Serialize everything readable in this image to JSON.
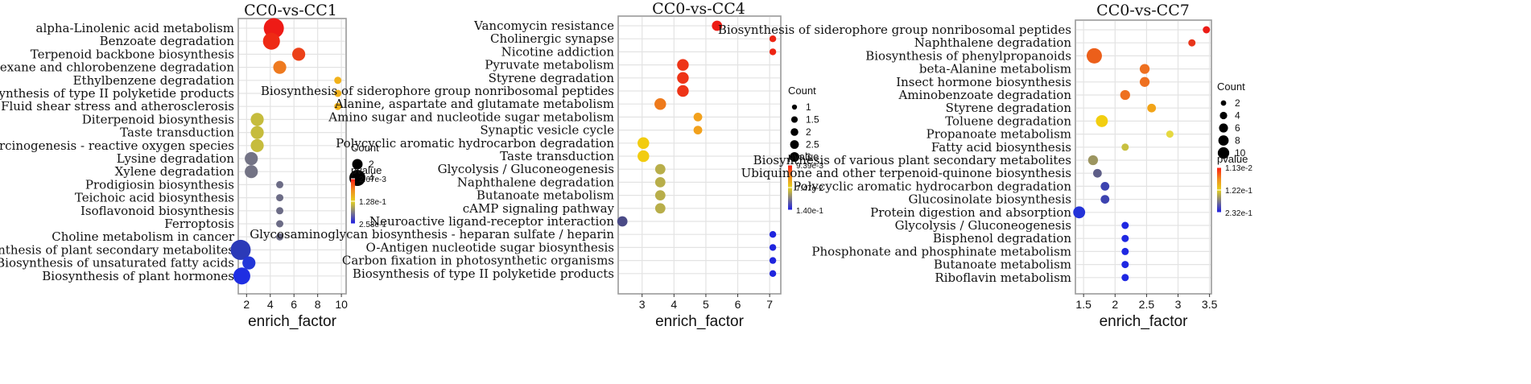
{
  "x_axis_label": "enrich_factor",
  "size_legend_title": "Count",
  "color_legend_title": "pvalue",
  "chart_data": [
    {
      "type": "scatter",
      "title": "CC0-vs-CC1",
      "xlabel": "enrich_factor",
      "xlim": [
        1.3,
        10.4
      ],
      "xticks": [
        2,
        4,
        6,
        8,
        10
      ],
      "size_legend": [
        2,
        4
      ],
      "size_domain": [
        1,
        4
      ],
      "color_legend_labels": [
        "2.67e-3",
        "1.28e-1",
        "2.53e-1"
      ],
      "terms": [
        {
          "term": "alpha-Linolenic acid metabolism",
          "enrich_factor": 4.3,
          "count": 4,
          "color": "#ee1b16"
        },
        {
          "term": "Benzoate degradation",
          "enrich_factor": 4.1,
          "count": 3,
          "color": "#ee2a14"
        },
        {
          "term": "Terpenoid backbone biosynthesis",
          "enrich_factor": 6.4,
          "count": 2,
          "color": "#ec4119"
        },
        {
          "term": "Chlorocyclohexane and chlorobenzene degradation",
          "enrich_factor": 4.8,
          "count": 2,
          "color": "#ee7a20"
        },
        {
          "term": "Ethylbenzene degradation",
          "enrich_factor": 9.7,
          "count": 1,
          "color": "#f2b21b"
        },
        {
          "term": "Biosynthesis of type II polyketide products",
          "enrich_factor": 9.7,
          "count": 1,
          "color": "#f2b21b"
        },
        {
          "term": "Fluid shear stress and atherosclerosis",
          "enrich_factor": 9.7,
          "count": 1,
          "color": "#f2b21b"
        },
        {
          "term": "Diterpenoid biosynthesis",
          "enrich_factor": 2.9,
          "count": 2,
          "color": "#c6bc3d"
        },
        {
          "term": "Taste transduction",
          "enrich_factor": 2.9,
          "count": 2,
          "color": "#c6bc3d"
        },
        {
          "term": "Chemical carcinogenesis - reactive oxygen species",
          "enrich_factor": 2.9,
          "count": 2,
          "color": "#c6bc3d"
        },
        {
          "term": "Lysine degradation",
          "enrich_factor": 2.4,
          "count": 2,
          "color": "#737385"
        },
        {
          "term": "Xylene degradation",
          "enrich_factor": 2.4,
          "count": 2,
          "color": "#737385"
        },
        {
          "term": "Prodigiosin biosynthesis",
          "enrich_factor": 4.8,
          "count": 1,
          "color": "#6c6c86"
        },
        {
          "term": "Teichoic acid biosynthesis",
          "enrich_factor": 4.8,
          "count": 1,
          "color": "#6c6c86"
        },
        {
          "term": "Isoflavonoid biosynthesis",
          "enrich_factor": 4.8,
          "count": 1,
          "color": "#6c6c86"
        },
        {
          "term": "Ferroptosis",
          "enrich_factor": 4.8,
          "count": 1,
          "color": "#6c6c86"
        },
        {
          "term": "Choline metabolism in cancer",
          "enrich_factor": 4.8,
          "count": 1,
          "color": "#6c6c86"
        },
        {
          "term": "Biosynthesis of plant secondary metabolites",
          "enrich_factor": 1.5,
          "count": 4,
          "color": "#2b3ab8"
        },
        {
          "term": "Biosynthesis of unsaturated fatty acids",
          "enrich_factor": 2.2,
          "count": 2,
          "color": "#2236d8"
        },
        {
          "term": "Biosynthesis of plant hormones",
          "enrich_factor": 1.6,
          "count": 3,
          "color": "#1f2ee2"
        }
      ]
    },
    {
      "type": "scatter",
      "title": "CC0-vs-CC4",
      "xlabel": "enrich_factor",
      "xlim": [
        2.25,
        7.35
      ],
      "xticks": [
        3,
        4,
        5,
        6,
        7
      ],
      "size_legend": [
        1,
        1.5,
        2,
        2.5,
        3
      ],
      "size_domain": [
        1,
        3
      ],
      "color_legend_labels": [
        "9.39e-3",
        "7.47e-2",
        "1.40e-1"
      ],
      "terms": [
        {
          "term": "Vancomycin resistance",
          "enrich_factor": 5.35,
          "count": 2,
          "color": "#ed1c15"
        },
        {
          "term": "Cholinergic synapse",
          "enrich_factor": 7.1,
          "count": 1,
          "color": "#ed2513"
        },
        {
          "term": "Nicotine addiction",
          "enrich_factor": 7.1,
          "count": 1,
          "color": "#ed2513"
        },
        {
          "term": "Pyruvate metabolism",
          "enrich_factor": 4.28,
          "count": 2.5,
          "color": "#ee3417"
        },
        {
          "term": "Styrene degradation",
          "enrich_factor": 4.28,
          "count": 2.5,
          "color": "#ee3417"
        },
        {
          "term": "Biosynthesis of siderophore group nonribosomal peptides",
          "enrich_factor": 4.28,
          "count": 2.5,
          "color": "#ee3417"
        },
        {
          "term": "Alanine, aspartate and glutamate metabolism",
          "enrich_factor": 3.57,
          "count": 2.5,
          "color": "#ee7a1c"
        },
        {
          "term": "Amino sugar and nucleotide sugar metabolism",
          "enrich_factor": 4.75,
          "count": 1.5,
          "color": "#f2a11c"
        },
        {
          "term": "Synaptic vesicle cycle",
          "enrich_factor": 4.75,
          "count": 1.5,
          "color": "#f2a11c"
        },
        {
          "term": "Polycyclic aromatic hydrocarbon degradation",
          "enrich_factor": 3.04,
          "count": 2.5,
          "color": "#f2cc10"
        },
        {
          "term": "Taste transduction",
          "enrich_factor": 3.04,
          "count": 2.5,
          "color": "#f2cc10"
        },
        {
          "term": "Glycolysis / Gluconeogenesis",
          "enrich_factor": 3.57,
          "count": 2,
          "color": "#b8ae4a"
        },
        {
          "term": "Naphthalene degradation",
          "enrich_factor": 3.57,
          "count": 2,
          "color": "#b8ae4a"
        },
        {
          "term": "Butanoate metabolism",
          "enrich_factor": 3.57,
          "count": 2,
          "color": "#b8ae4a"
        },
        {
          "term": "cAMP signaling pathway",
          "enrich_factor": 3.57,
          "count": 2,
          "color": "#b8ae4a"
        },
        {
          "term": "Neuroactive ligand-receptor interaction",
          "enrich_factor": 2.38,
          "count": 2,
          "color": "#4a4a86"
        },
        {
          "term": "Glycosaminoglycan biosynthesis - heparan sulfate / heparin",
          "enrich_factor": 7.1,
          "count": 1,
          "color": "#1f25de"
        },
        {
          "term": "O-Antigen nucleotide sugar biosynthesis",
          "enrich_factor": 7.1,
          "count": 1,
          "color": "#1f25de"
        },
        {
          "term": "Carbon fixation in photosynthetic organisms",
          "enrich_factor": 7.1,
          "count": 1,
          "color": "#1f25de"
        },
        {
          "term": "Biosynthesis of type II polyketide products",
          "enrich_factor": 7.1,
          "count": 1,
          "color": "#1f25de"
        }
      ]
    },
    {
      "type": "scatter",
      "title": "CC0-vs-CC7",
      "xlabel": "enrich_factor",
      "xlim": [
        1.37,
        3.53
      ],
      "xticks": [
        1.5,
        2,
        2.5,
        3,
        3.5
      ],
      "xticklabels": [
        "1.5",
        "2",
        "2.5",
        "3",
        "3.5"
      ],
      "size_legend": [
        2,
        4,
        6,
        8,
        10
      ],
      "size_domain": [
        2,
        10
      ],
      "color_legend_labels": [
        "1.13e-2",
        "1.22e-1",
        "2.32e-1"
      ],
      "terms": [
        {
          "term": "Biosynthesis of siderophore group nonribosomal peptides",
          "enrich_factor": 3.45,
          "count": 2,
          "color": "#ec1c16"
        },
        {
          "term": "Naphthalene degradation",
          "enrich_factor": 3.22,
          "count": 2,
          "color": "#e8351a"
        },
        {
          "term": "Biosynthesis of phenylpropanoids",
          "enrich_factor": 1.67,
          "count": 10,
          "color": "#ec5f1a"
        },
        {
          "term": "beta-Alanine metabolism",
          "enrich_factor": 2.47,
          "count": 4,
          "color": "#ee7020"
        },
        {
          "term": "Insect hormone biosynthesis",
          "enrich_factor": 2.47,
          "count": 4,
          "color": "#ee7020"
        },
        {
          "term": "Aminobenzoate degradation",
          "enrich_factor": 2.16,
          "count": 4,
          "color": "#ee7020"
        },
        {
          "term": "Styrene degradation",
          "enrich_factor": 2.58,
          "count": 3,
          "color": "#f2a418"
        },
        {
          "term": "Toluene degradation",
          "enrich_factor": 1.79,
          "count": 6,
          "color": "#f2ce10"
        },
        {
          "term": "Propanoate metabolism",
          "enrich_factor": 2.87,
          "count": 2,
          "color": "#e6d940"
        },
        {
          "term": "Fatty acid biosynthesis",
          "enrich_factor": 2.16,
          "count": 2,
          "color": "#c8c040"
        },
        {
          "term": "Biosynthesis of various plant secondary metabolites",
          "enrich_factor": 1.65,
          "count": 4,
          "color": "#9c9560"
        },
        {
          "term": "Ubiquinone and other terpenoid-quinone biosynthesis",
          "enrich_factor": 1.72,
          "count": 3,
          "color": "#5e5e88"
        },
        {
          "term": "Polycyclic aromatic hydrocarbon degradation",
          "enrich_factor": 1.84,
          "count": 3,
          "color": "#3d43b0"
        },
        {
          "term": "Glucosinolate biosynthesis",
          "enrich_factor": 1.84,
          "count": 3,
          "color": "#3d43b0"
        },
        {
          "term": "Protein digestion and absorption",
          "enrich_factor": 1.43,
          "count": 6,
          "color": "#2433d8"
        },
        {
          "term": "Glycolysis / Gluconeogenesis",
          "enrich_factor": 2.16,
          "count": 2,
          "color": "#1f28e2"
        },
        {
          "term": "Bisphenol degradation",
          "enrich_factor": 2.16,
          "count": 2,
          "color": "#1f28e2"
        },
        {
          "term": "Phosphonate and phosphinate metabolism",
          "enrich_factor": 2.16,
          "count": 2,
          "color": "#1f28e2"
        },
        {
          "term": "Butanoate metabolism",
          "enrich_factor": 2.16,
          "count": 2,
          "color": "#1f28e2"
        },
        {
          "term": "Riboflavin metabolism",
          "enrich_factor": 2.16,
          "count": 2,
          "color": "#1f28e2"
        }
      ]
    }
  ]
}
